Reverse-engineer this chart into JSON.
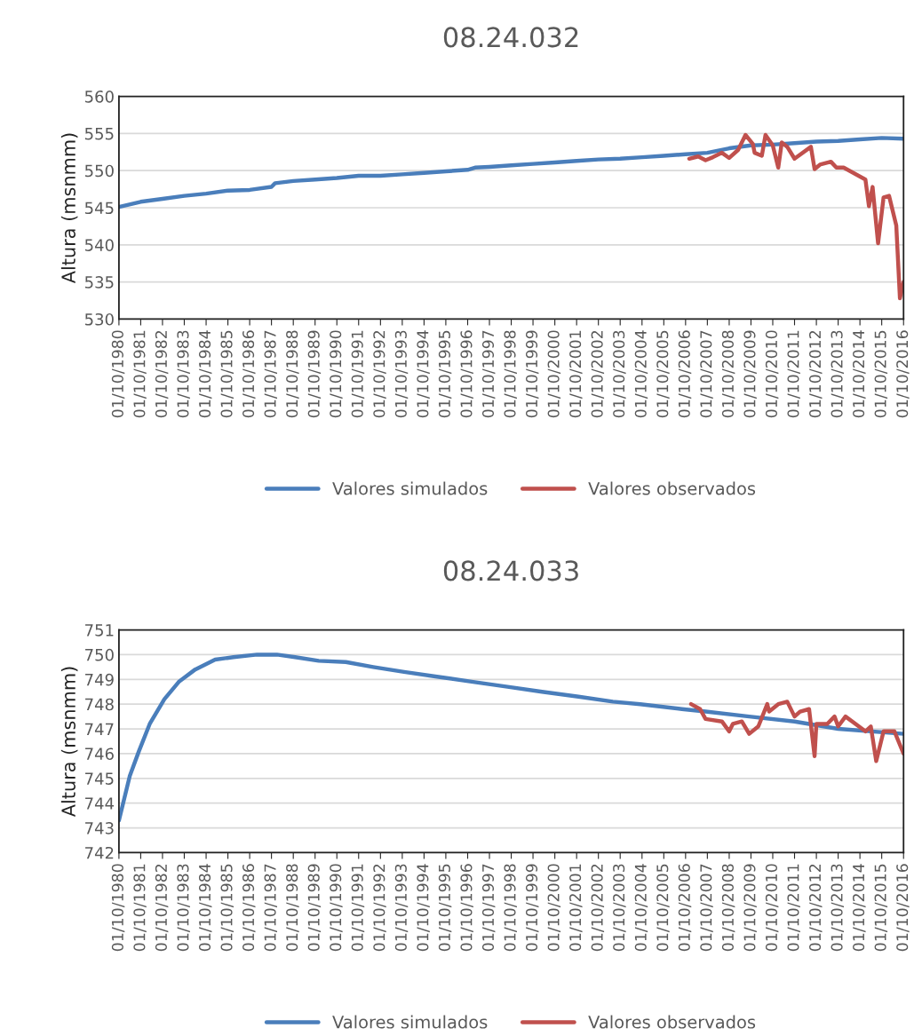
{
  "chart_data": [
    {
      "type": "line",
      "title": "08.24.032",
      "ylabel": "Altura (msnmm)",
      "xlim": [
        "1980-10-01",
        "2016-10-01"
      ],
      "xticks": [
        {
          "value": "1980-10-01",
          "label": "01/10/1980"
        },
        {
          "value": "1981-10-01",
          "label": "01/10/1981"
        },
        {
          "value": "1982-10-01",
          "label": "01/10/1982"
        },
        {
          "value": "1983-10-01",
          "label": "01/10/1983"
        },
        {
          "value": "1984-10-01",
          "label": "01/10/1984"
        },
        {
          "value": "1985-10-01",
          "label": "01/10/1985"
        },
        {
          "value": "1986-10-01",
          "label": "01/10/1986"
        },
        {
          "value": "1987-10-01",
          "label": "01/10/1987"
        },
        {
          "value": "1988-10-01",
          "label": "01/10/1988"
        },
        {
          "value": "1989-10-01",
          "label": "01/10/1989"
        },
        {
          "value": "1990-10-01",
          "label": "01/10/1990"
        },
        {
          "value": "1991-10-01",
          "label": "01/10/1991"
        },
        {
          "value": "1992-10-01",
          "label": "01/10/1992"
        },
        {
          "value": "1993-10-01",
          "label": "01/10/1993"
        },
        {
          "value": "1994-10-01",
          "label": "01/10/1994"
        },
        {
          "value": "1995-10-01",
          "label": "01/10/1995"
        },
        {
          "value": "1996-10-01",
          "label": "01/10/1996"
        },
        {
          "value": "1997-10-01",
          "label": "01/10/1997"
        },
        {
          "value": "1998-10-01",
          "label": "01/10/1998"
        },
        {
          "value": "1999-10-01",
          "label": "01/10/1999"
        },
        {
          "value": "2000-10-01",
          "label": "01/10/2000"
        },
        {
          "value": "2001-10-01",
          "label": "01/10/2001"
        },
        {
          "value": "2002-10-01",
          "label": "01/10/2002"
        },
        {
          "value": "2003-10-01",
          "label": "01/10/2003"
        },
        {
          "value": "2004-10-01",
          "label": "01/10/2004"
        },
        {
          "value": "2005-10-01",
          "label": "01/10/2005"
        },
        {
          "value": "2006-10-01",
          "label": "01/10/2006"
        },
        {
          "value": "2007-10-01",
          "label": "01/10/2007"
        },
        {
          "value": "2008-10-01",
          "label": "01/10/2008"
        },
        {
          "value": "2009-10-01",
          "label": "01/10/2009"
        },
        {
          "value": "2010-10-01",
          "label": "01/10/2010"
        },
        {
          "value": "2011-10-01",
          "label": "01/10/2011"
        },
        {
          "value": "2012-10-01",
          "label": "01/10/2012"
        },
        {
          "value": "2013-10-01",
          "label": "01/10/2013"
        },
        {
          "value": "2014-10-01",
          "label": "01/10/2014"
        },
        {
          "value": "2015-10-01",
          "label": "01/10/2015"
        },
        {
          "value": "2016-10-01",
          "label": "01/10/2016"
        }
      ],
      "ylim": [
        530,
        560
      ],
      "yticks": [
        530,
        535,
        540,
        545,
        550,
        555,
        560
      ],
      "grid": "y",
      "legend": "bottom",
      "series": [
        {
          "name": "Valores simulados",
          "color": "#4a7ebb",
          "x": [
            "1980-10",
            "1981-10",
            "1982-10",
            "1983-10",
            "1984-10",
            "1985-10",
            "1986-10",
            "1987-10",
            "1987-12",
            "1988-10",
            "1989-10",
            "1990-10",
            "1991-10",
            "1992-10",
            "1993-10",
            "1994-10",
            "1995-10",
            "1996-10",
            "1997-02",
            "1997-10",
            "1998-10",
            "1999-10",
            "2000-10",
            "2001-10",
            "2002-10",
            "2003-10",
            "2004-10",
            "2005-10",
            "2006-10",
            "2007-10",
            "2008-10",
            "2009-10",
            "2010-10",
            "2011-10",
            "2012-10",
            "2013-10",
            "2014-10",
            "2015-10",
            "2016-10"
          ],
          "values": [
            545.1,
            545.8,
            546.2,
            546.6,
            546.9,
            547.3,
            547.4,
            547.8,
            548.3,
            548.6,
            548.8,
            549.0,
            549.3,
            549.3,
            549.5,
            549.7,
            549.9,
            550.1,
            550.4,
            550.5,
            550.7,
            550.9,
            551.1,
            551.3,
            551.5,
            551.6,
            551.8,
            552.0,
            552.2,
            552.4,
            553.0,
            553.4,
            553.5,
            553.7,
            553.9,
            554.0,
            554.2,
            554.4,
            554.3
          ]
        },
        {
          "name": "Valores observados",
          "color": "#c0504d",
          "x": [
            "2006-12",
            "2007-05",
            "2007-09",
            "2008-01",
            "2008-06",
            "2008-10",
            "2009-03",
            "2009-07",
            "2009-11",
            "2009-12",
            "2010-04",
            "2010-06",
            "2010-10",
            "2011-01",
            "2011-03",
            "2011-06",
            "2011-10",
            "2012-07",
            "2012-09",
            "2012-12",
            "2013-06",
            "2013-09",
            "2014-01",
            "2015-01",
            "2015-03",
            "2015-05",
            "2015-08",
            "2015-11",
            "2016-02",
            "2016-06",
            "2016-08",
            "2016-10"
          ],
          "values": [
            551.6,
            551.9,
            551.4,
            551.8,
            552.4,
            551.7,
            552.8,
            554.8,
            553.6,
            552.4,
            552.0,
            554.8,
            553.4,
            550.4,
            553.8,
            553.2,
            551.6,
            553.2,
            550.2,
            550.8,
            551.2,
            550.4,
            550.4,
            548.8,
            545.2,
            547.8,
            540.2,
            546.4,
            546.6,
            542.6,
            532.8,
            535.0
          ]
        }
      ]
    },
    {
      "type": "line",
      "title": "08.24.033",
      "ylabel": "Altura (msnmm)",
      "xlim": [
        "1980-10-01",
        "2016-10-01"
      ],
      "xticks": [
        {
          "value": "1980-10-01",
          "label": "01/10/1980"
        },
        {
          "value": "1981-10-01",
          "label": "01/10/1981"
        },
        {
          "value": "1982-10-01",
          "label": "01/10/1982"
        },
        {
          "value": "1983-10-01",
          "label": "01/10/1983"
        },
        {
          "value": "1984-10-01",
          "label": "01/10/1984"
        },
        {
          "value": "1985-10-01",
          "label": "01/10/1985"
        },
        {
          "value": "1986-10-01",
          "label": "01/10/1986"
        },
        {
          "value": "1987-10-01",
          "label": "01/10/1987"
        },
        {
          "value": "1988-10-01",
          "label": "01/10/1988"
        },
        {
          "value": "1989-10-01",
          "label": "01/10/1989"
        },
        {
          "value": "1990-10-01",
          "label": "01/10/1990"
        },
        {
          "value": "1991-10-01",
          "label": "01/10/1991"
        },
        {
          "value": "1992-10-01",
          "label": "01/10/1992"
        },
        {
          "value": "1993-10-01",
          "label": "01/10/1993"
        },
        {
          "value": "1994-10-01",
          "label": "01/10/1994"
        },
        {
          "value": "1995-10-01",
          "label": "01/10/1995"
        },
        {
          "value": "1996-10-01",
          "label": "01/10/1996"
        },
        {
          "value": "1997-10-01",
          "label": "01/10/1997"
        },
        {
          "value": "1998-10-01",
          "label": "01/10/1998"
        },
        {
          "value": "1999-10-01",
          "label": "01/10/1999"
        },
        {
          "value": "2000-10-01",
          "label": "01/10/2000"
        },
        {
          "value": "2001-10-01",
          "label": "01/10/2001"
        },
        {
          "value": "2002-10-01",
          "label": "01/10/2002"
        },
        {
          "value": "2003-10-01",
          "label": "01/10/2003"
        },
        {
          "value": "2004-10-01",
          "label": "01/10/2004"
        },
        {
          "value": "2005-10-01",
          "label": "01/10/2005"
        },
        {
          "value": "2006-10-01",
          "label": "01/10/2006"
        },
        {
          "value": "2007-10-01",
          "label": "01/10/2007"
        },
        {
          "value": "2008-10-01",
          "label": "01/10/2008"
        },
        {
          "value": "2009-10-01",
          "label": "01/10/2009"
        },
        {
          "value": "2010-10-01",
          "label": "01/10/2010"
        },
        {
          "value": "2011-10-01",
          "label": "01/10/2011"
        },
        {
          "value": "2012-10-01",
          "label": "01/10/2012"
        },
        {
          "value": "2013-10-01",
          "label": "01/10/2013"
        },
        {
          "value": "2014-10-01",
          "label": "01/10/2014"
        },
        {
          "value": "2015-10-01",
          "label": "01/10/2015"
        },
        {
          "value": "2016-10-01",
          "label": "01/10/2016"
        }
      ],
      "ylim": [
        742,
        751
      ],
      "yticks": [
        742,
        743,
        744,
        745,
        746,
        747,
        748,
        749,
        750,
        751
      ],
      "grid": "y",
      "legend": "bottom",
      "series": [
        {
          "name": "Valores simulados",
          "color": "#4a7ebb",
          "x": [
            "1980-10",
            "1981-04",
            "1981-09",
            "1982-03",
            "1982-11",
            "1983-07",
            "1984-04",
            "1985-03",
            "1986-01",
            "1987-02",
            "1988-01",
            "1988-11",
            "1989-12",
            "1991-03",
            "1992-06",
            "1993-11",
            "1995-06",
            "1997-01",
            "1998-08",
            "2000-03",
            "2001-11",
            "2003-06",
            "2004-09",
            "2006-08",
            "2007-09",
            "2009-09",
            "2011-10",
            "2013-10",
            "2016-10"
          ],
          "values": [
            743.3,
            745.1,
            746.1,
            747.2,
            748.2,
            748.9,
            749.4,
            749.8,
            749.9,
            750.0,
            750.0,
            749.9,
            749.75,
            749.7,
            749.5,
            749.3,
            749.1,
            748.9,
            748.7,
            748.5,
            748.3,
            748.1,
            748.0,
            747.8,
            747.7,
            747.5,
            747.3,
            747.0,
            746.8
          ]
        },
        {
          "name": "Valores observados",
          "color": "#c0504d",
          "x": [
            "2007-01",
            "2007-06",
            "2007-09",
            "2008-06",
            "2008-10",
            "2008-12",
            "2009-05",
            "2009-09",
            "2010-02",
            "2010-07",
            "2010-08",
            "2011-01",
            "2011-06",
            "2011-10",
            "2012-01",
            "2012-06",
            "2012-09",
            "2012-10",
            "2013-04",
            "2013-08",
            "2013-10",
            "2014-02",
            "2015-01",
            "2015-04",
            "2015-07",
            "2015-11",
            "2016-05",
            "2016-10"
          ],
          "values": [
            748.0,
            747.8,
            747.4,
            747.3,
            746.9,
            747.2,
            747.3,
            746.8,
            747.1,
            748.0,
            747.7,
            748.0,
            748.1,
            747.5,
            747.7,
            747.8,
            745.9,
            747.2,
            747.2,
            747.5,
            747.1,
            747.5,
            746.9,
            747.1,
            745.7,
            746.9,
            746.9,
            746.0
          ]
        }
      ]
    }
  ]
}
